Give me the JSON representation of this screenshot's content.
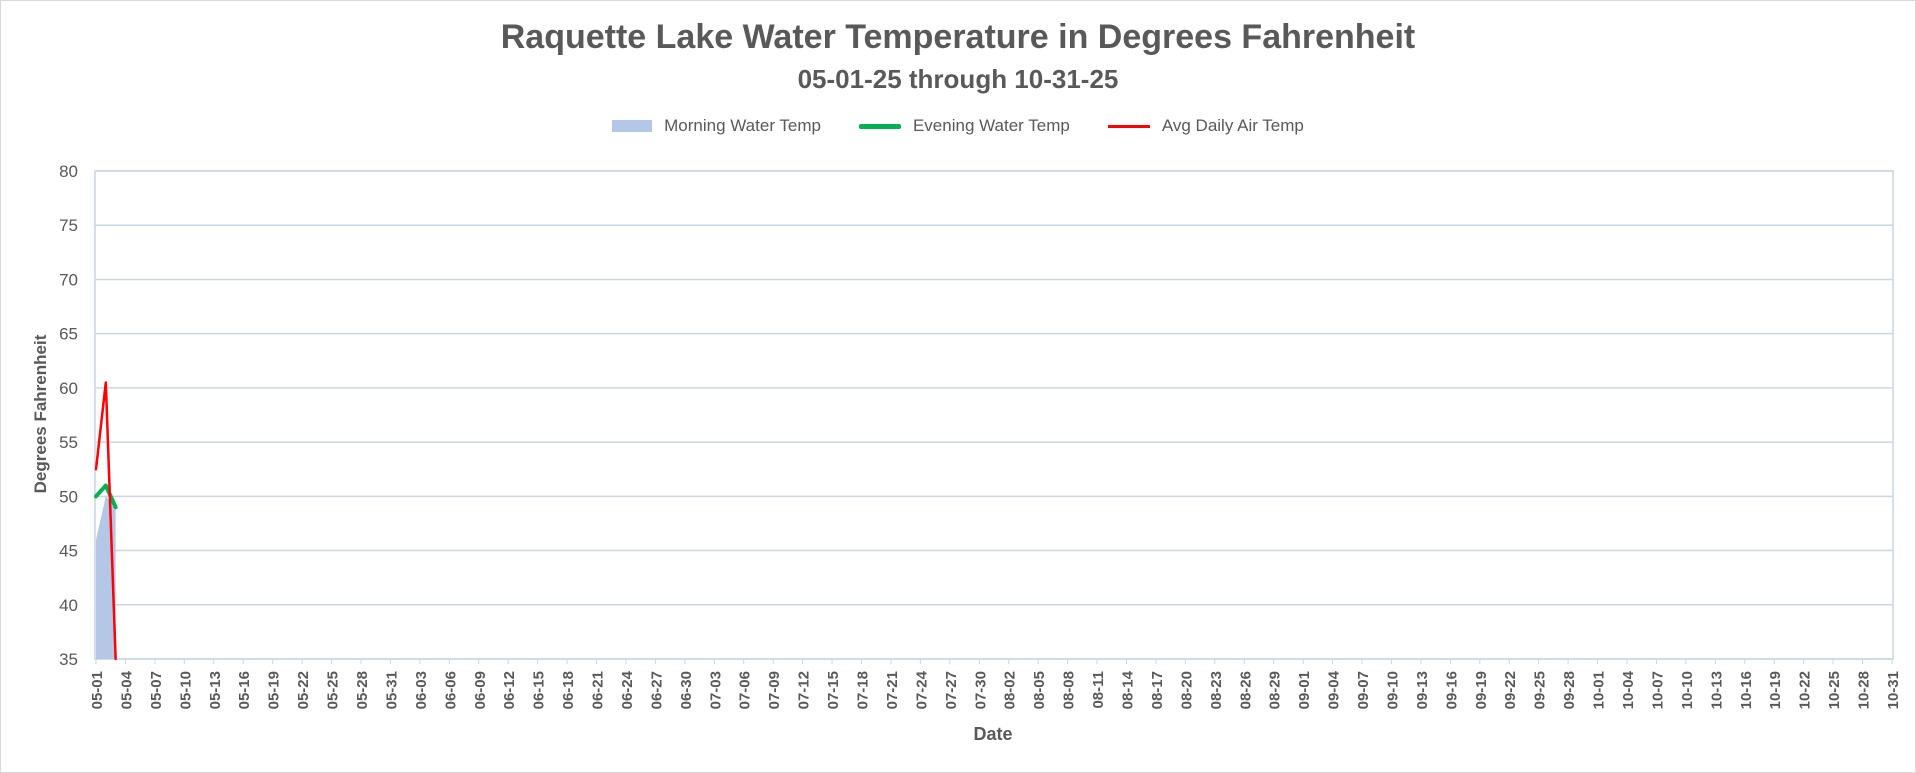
{
  "chart_data": {
    "type": "area",
    "title": "Raquette Lake Water Temperature in Degrees Fahrenheit",
    "subtitle": "05-01-25 through 10-31-25",
    "xlabel": "Date",
    "ylabel": "Degrees  Fahrenheit",
    "ylim": [
      35,
      80
    ],
    "y_ticks": [
      35,
      40,
      45,
      50,
      55,
      60,
      65,
      70,
      75,
      80
    ],
    "grid": true,
    "legend_position": "top",
    "x_range": [
      "05-01",
      "10-31"
    ],
    "x_tick_labels": [
      "05-01",
      "05-04",
      "05-07",
      "05-10",
      "05-13",
      "05-16",
      "05-19",
      "05-22",
      "05-25",
      "05-28",
      "05-31",
      "06-03",
      "06-06",
      "06-09",
      "06-12",
      "06-15",
      "06-18",
      "06-21",
      "06-24",
      "06-27",
      "06-30",
      "07-03",
      "07-06",
      "07-09",
      "07-12",
      "07-15",
      "07-18",
      "07-21",
      "07-24",
      "07-27",
      "07-30",
      "08-02",
      "08-05",
      "08-08",
      "08-11",
      "08-14",
      "08-17",
      "08-20",
      "08-23",
      "08-26",
      "08-29",
      "09-01",
      "09-04",
      "09-07",
      "09-10",
      "09-13",
      "09-16",
      "09-19",
      "09-22",
      "09-25",
      "09-28",
      "10-01",
      "10-04",
      "10-07",
      "10-10",
      "10-13",
      "10-16",
      "10-19",
      "10-22",
      "10-25",
      "10-28",
      "10-31"
    ],
    "series": [
      {
        "name": "Morning Water Temp",
        "type": "area",
        "color": "#b4c7e7",
        "x": [
          "05-01",
          "05-02",
          "05-03"
        ],
        "values": [
          46,
          50,
          49
        ]
      },
      {
        "name": "Evening Water Temp",
        "type": "line",
        "color": "#00b050",
        "x": [
          "05-01",
          "05-02",
          "05-03"
        ],
        "values": [
          50,
          51,
          49
        ]
      },
      {
        "name": "Avg Daily Air Temp",
        "type": "line",
        "color": "#ff0000",
        "x": [
          "05-01",
          "05-02",
          "05-03"
        ],
        "values": [
          52.5,
          60.5,
          35
        ]
      }
    ]
  }
}
